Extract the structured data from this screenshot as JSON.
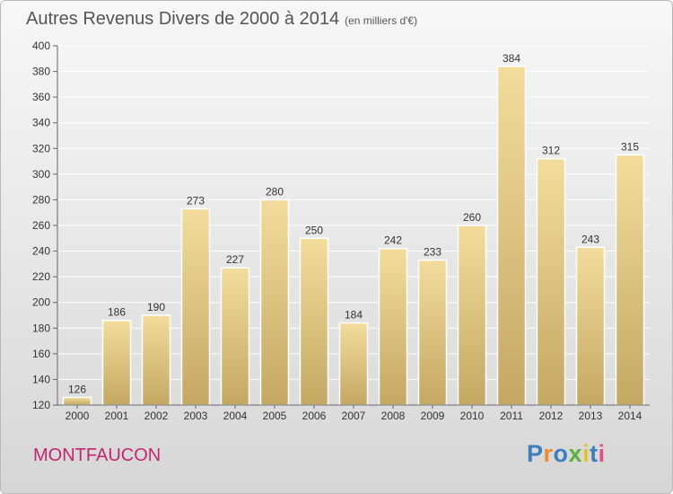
{
  "header": {
    "title": "Autres Revenus Divers de 2000 à 2014",
    "subtitle": "(en milliers d'€)"
  },
  "footer": {
    "commune": "MONTFAUCON",
    "brand": "Proxiti"
  },
  "colors": {
    "bar_top": "#f3dc9c",
    "bar_bottom": "#c4a862",
    "grid": "#ffffff",
    "axis_text": "#333333",
    "commune": "#c42573",
    "brand_letters": [
      "#3a7fc1",
      "#f08a2a",
      "#3a7fc1",
      "#58b23c",
      "#e8c21c",
      "#3a7fc1",
      "#e24d8a"
    ]
  },
  "chart_data": {
    "type": "bar",
    "title": "Autres Revenus Divers de 2000 à 2014",
    "subtitle": "(en milliers d'€)",
    "categories": [
      "2000",
      "2001",
      "2002",
      "2003",
      "2004",
      "2005",
      "2006",
      "2007",
      "2008",
      "2009",
      "2010",
      "2011",
      "2012",
      "2013",
      "2014"
    ],
    "values": [
      126,
      186,
      190,
      273,
      227,
      280,
      250,
      184,
      242,
      233,
      260,
      384,
      312,
      243,
      315
    ],
    "ylim": [
      120,
      400
    ],
    "yticks": [
      120,
      140,
      160,
      180,
      200,
      220,
      240,
      260,
      280,
      300,
      320,
      340,
      360,
      380,
      400
    ],
    "grid": true,
    "data_labels": true,
    "xlabel": "",
    "ylabel": ""
  }
}
